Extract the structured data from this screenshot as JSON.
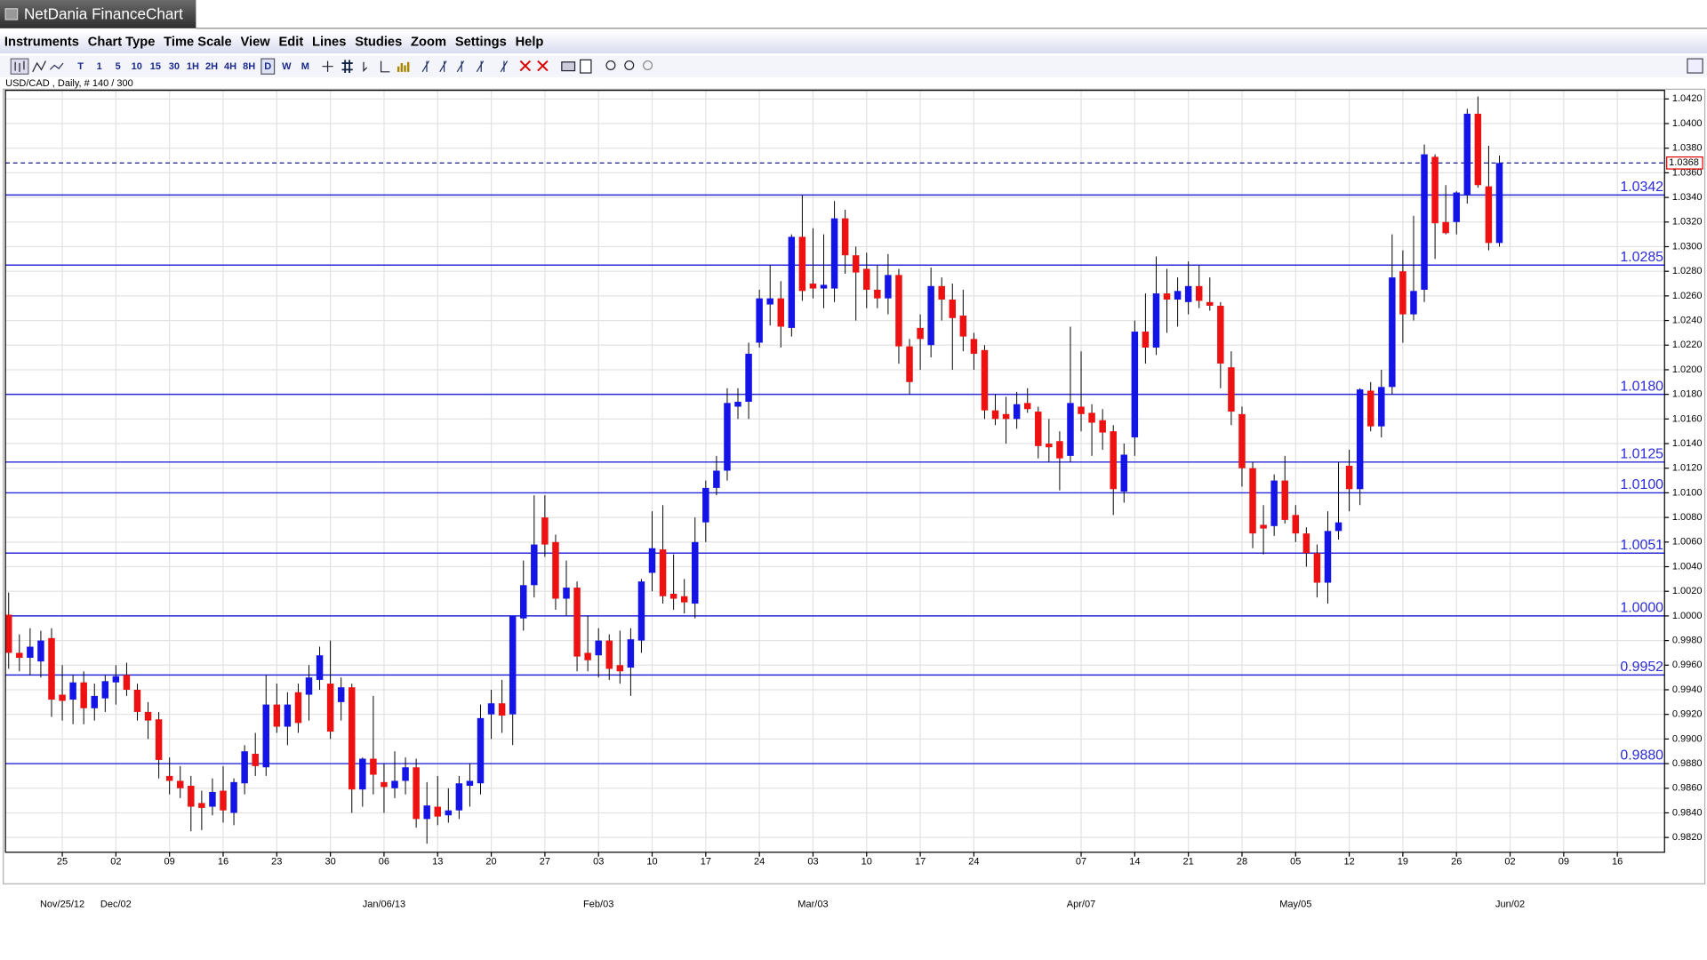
{
  "window": {
    "title": "NetDania FinanceChart"
  },
  "menu": [
    "Instruments",
    "Chart Type",
    "Time Scale",
    "View",
    "Edit",
    "Lines",
    "Studies",
    "Zoom",
    "Settings",
    "Help"
  ],
  "toolbar": {
    "time_buttons": [
      "T",
      "1",
      "5",
      "10",
      "15",
      "30",
      "1H",
      "2H",
      "4H",
      "8H",
      "D",
      "W",
      "M"
    ],
    "selected": "D"
  },
  "chart_data": {
    "type": "candlestick",
    "title": "USD/CAD , Daily, # 140 / 300",
    "up_color": "#1414e6",
    "down_color": "#ee1111",
    "level_color": "#2a2ad8",
    "grid": true,
    "xlim": [
      -0.3,
      154.4
    ],
    "ylim": [
      0.9808,
      1.0427
    ],
    "xticks": [
      {
        "value": 5,
        "label": "25"
      },
      {
        "value": 10,
        "label": "02"
      },
      {
        "value": 15,
        "label": "09"
      },
      {
        "value": 20,
        "label": "16"
      },
      {
        "value": 25,
        "label": "23"
      },
      {
        "value": 30,
        "label": "30"
      },
      {
        "value": 35,
        "label": "06"
      },
      {
        "value": 40,
        "label": "13"
      },
      {
        "value": 45,
        "label": "20"
      },
      {
        "value": 50,
        "label": "27"
      },
      {
        "value": 55,
        "label": "03"
      },
      {
        "value": 60,
        "label": "10"
      },
      {
        "value": 65,
        "label": "17"
      },
      {
        "value": 70,
        "label": "24"
      },
      {
        "value": 75,
        "label": "03"
      },
      {
        "value": 80,
        "label": "10"
      },
      {
        "value": 85,
        "label": "17"
      },
      {
        "value": 90,
        "label": "24"
      },
      {
        "value": 100,
        "label": "07"
      },
      {
        "value": 105,
        "label": "14"
      },
      {
        "value": 110,
        "label": "21"
      },
      {
        "value": 115,
        "label": "28"
      },
      {
        "value": 120,
        "label": "05"
      },
      {
        "value": 125,
        "label": "12"
      },
      {
        "value": 130,
        "label": "19"
      },
      {
        "value": 135,
        "label": "26"
      },
      {
        "value": 140,
        "label": "02"
      },
      {
        "value": 145,
        "label": "09"
      },
      {
        "value": 150,
        "label": "16"
      }
    ],
    "date_labels": [
      {
        "value": 5,
        "label": "Nov/25/12"
      },
      {
        "value": 10,
        "label": "Dec/02"
      },
      {
        "value": 35,
        "label": "Jan/06/13"
      },
      {
        "value": 55,
        "label": "Feb/03"
      },
      {
        "value": 75,
        "label": "Mar/03"
      },
      {
        "value": 100,
        "label": "Apr/07"
      },
      {
        "value": 120,
        "label": "May/05"
      },
      {
        "value": 140,
        "label": "Jun/02"
      }
    ],
    "yticks": [
      {
        "value": 0.982,
        "label": "0.9820"
      },
      {
        "value": 0.984,
        "label": "0.9840"
      },
      {
        "value": 0.986,
        "label": "0.9860"
      },
      {
        "value": 0.988,
        "label": "0.9880"
      },
      {
        "value": 0.99,
        "label": "0.9900"
      },
      {
        "value": 0.992,
        "label": "0.9920"
      },
      {
        "value": 0.994,
        "label": "0.9940"
      },
      {
        "value": 0.996,
        "label": "0.9960"
      },
      {
        "value": 0.998,
        "label": "0.9980"
      },
      {
        "value": 1.0,
        "label": "1.0000"
      },
      {
        "value": 1.002,
        "label": "1.0020"
      },
      {
        "value": 1.004,
        "label": "1.0040"
      },
      {
        "value": 1.006,
        "label": "1.0060"
      },
      {
        "value": 1.008,
        "label": "1.0080"
      },
      {
        "value": 1.01,
        "label": "1.0100"
      },
      {
        "value": 1.012,
        "label": "1.0120"
      },
      {
        "value": 1.014,
        "label": "1.0140"
      },
      {
        "value": 1.016,
        "label": "1.0160"
      },
      {
        "value": 1.018,
        "label": "1.0180"
      },
      {
        "value": 1.02,
        "label": "1.0200"
      },
      {
        "value": 1.022,
        "label": "1.0220"
      },
      {
        "value": 1.024,
        "label": "1.0240"
      },
      {
        "value": 1.026,
        "label": "1.0260"
      },
      {
        "value": 1.028,
        "label": "1.0280"
      },
      {
        "value": 1.03,
        "label": "1.0300"
      },
      {
        "value": 1.032,
        "label": "1.0320"
      },
      {
        "value": 1.034,
        "label": "1.0340"
      },
      {
        "value": 1.036,
        "label": "1.0360"
      },
      {
        "value": 1.038,
        "label": "1.0380"
      },
      {
        "value": 1.04,
        "label": "1.0400"
      },
      {
        "value": 1.042,
        "label": "1.0420"
      }
    ],
    "levels": [
      {
        "value": 1.0342,
        "label": "1.0342"
      },
      {
        "value": 1.0285,
        "label": "1.0285"
      },
      {
        "value": 1.018,
        "label": "1.0180"
      },
      {
        "value": 1.0125,
        "label": "1.0125"
      },
      {
        "value": 1.01,
        "label": "1.0100"
      },
      {
        "value": 1.0051,
        "label": "1.0051"
      },
      {
        "value": 1.0,
        "label": "1.0000"
      },
      {
        "value": 0.9952,
        "label": "0.9952"
      },
      {
        "value": 0.988,
        "label": "0.9880"
      }
    ],
    "last_price": {
      "value": 1.0368,
      "label": "1.0368"
    },
    "open": [
      1.0001,
      0.997,
      0.9966,
      0.9963,
      0.9982,
      0.9936,
      0.9932,
      0.9946,
      0.9925,
      0.9933,
      0.9946,
      0.9952,
      0.994,
      0.9922,
      0.9916,
      0.987,
      0.9866,
      0.9862,
      0.9848,
      0.9845,
      0.9858,
      0.984,
      0.9864,
      0.9888,
      0.9877,
      0.9928,
      0.991,
      0.9938,
      0.9936,
      0.9948,
      0.9945,
      0.993,
      0.9942,
      0.9859,
      0.9884,
      0.9865,
      0.986,
      0.9866,
      0.9877,
      0.9835,
      0.9845,
      0.9838,
      0.9842,
      0.9862,
      0.9864,
      0.992,
      0.9929,
      0.992,
      0.9998,
      1.0025,
      1.008,
      1.006,
      1.0014,
      1.0023,
      0.997,
      0.9968,
      0.998,
      0.996,
      0.9958,
      0.998,
      1.0035,
      1.0054,
      1.0018,
      1.0016,
      1.001,
      1.0076,
      1.0104,
      1.0118,
      1.017,
      1.0174,
      1.0222,
      1.0253,
      1.0258,
      1.0234,
      1.0308,
      1.027,
      1.0266,
      1.0266,
      1.0323,
      1.0293,
      1.0282,
      1.0265,
      1.0258,
      1.0277,
      1.0219,
      1.0234,
      1.022,
      1.0268,
      1.0257,
      1.0244,
      1.0225,
      1.0216,
      1.0167,
      1.0164,
      1.016,
      1.0173,
      1.0166,
      1.014,
      1.0142,
      1.013,
      1.017,
      1.0165,
      1.0159,
      1.015,
      1.0101,
      1.0145,
      1.0231,
      1.0218,
      1.0262,
      1.0257,
      1.0255,
      1.0268,
      1.0255,
      1.0252,
      1.0202,
      1.0164,
      1.012,
      1.0074,
      1.0073,
      1.011,
      1.0082,
      1.0067,
      1.0051,
      1.0027,
      1.0069,
      1.0122,
      1.0103,
      1.0183,
      1.0154,
      1.0186,
      1.028,
      1.0245,
      1.0265,
      1.0373,
      1.032,
      1.032,
      1.0342,
      1.0408,
      1.0349,
      1.0303
    ],
    "high": [
      1.0019,
      0.9985,
      0.999,
      0.9988,
      0.999,
      0.996,
      0.9952,
      0.9955,
      0.9945,
      0.9952,
      0.996,
      0.9962,
      0.9945,
      0.993,
      0.9922,
      0.9885,
      0.9878,
      0.987,
      0.9858,
      0.9868,
      0.9878,
      0.9868,
      0.9895,
      0.9905,
      0.9952,
      0.9945,
      0.9938,
      0.9945,
      0.996,
      0.9975,
      0.998,
      0.995,
      0.9945,
      0.9885,
      0.9935,
      0.988,
      0.989,
      0.9885,
      0.9884,
      0.9865,
      0.987,
      0.986,
      0.987,
      0.988,
      0.9928,
      0.994,
      0.9948,
      1.0,
      1.0045,
      1.0098,
      1.0098,
      1.0066,
      1.0045,
      1.0028,
      1.0,
      0.999,
      0.9985,
      0.9988,
      0.999,
      1.003,
      1.0085,
      1.009,
      1.005,
      1.003,
      1.008,
      1.011,
      1.013,
      1.0185,
      1.0185,
      1.0222,
      1.0265,
      1.0285,
      1.0272,
      1.031,
      1.0342,
      1.0315,
      1.031,
      1.0337,
      1.033,
      1.03,
      1.0295,
      1.0285,
      1.0294,
      1.0282,
      1.0225,
      1.0245,
      1.0283,
      1.0275,
      1.027,
      1.0265,
      1.023,
      1.022,
      1.018,
      1.0178,
      1.0182,
      1.0185,
      1.017,
      1.016,
      1.015,
      1.0235,
      1.0215,
      1.0172,
      1.0168,
      1.0155,
      1.014,
      1.024,
      1.0262,
      1.0292,
      1.0282,
      1.0275,
      1.0288,
      1.0285,
      1.0275,
      1.0255,
      1.0215,
      1.017,
      1.0125,
      1.009,
      1.0115,
      1.013,
      1.009,
      1.0072,
      1.0058,
      1.0085,
      1.0125,
      1.0135,
      1.0185,
      1.019,
      1.02,
      1.031,
      1.0297,
      1.0325,
      1.0383,
      1.0375,
      1.035,
      1.0345,
      1.0412,
      1.0422,
      1.0382,
      1.0374
    ],
    "low": [
      0.9957,
      0.9955,
      0.9952,
      0.995,
      0.9918,
      0.9915,
      0.9912,
      0.9912,
      0.9915,
      0.9922,
      0.9928,
      0.9935,
      0.9915,
      0.99,
      0.9868,
      0.9855,
      0.9852,
      0.9825,
      0.9826,
      0.9838,
      0.9832,
      0.983,
      0.9855,
      0.987,
      0.987,
      0.9905,
      0.9895,
      0.9905,
      0.9915,
      0.994,
      0.99,
      0.9915,
      0.984,
      0.9845,
      0.9855,
      0.984,
      0.9852,
      0.9855,
      0.9828,
      0.9815,
      0.983,
      0.9832,
      0.9835,
      0.9845,
      0.9855,
      0.99,
      0.9905,
      0.9895,
      0.9988,
      1.0015,
      1.0048,
      1.0005,
      1.0,
      0.9955,
      0.9955,
      0.995,
      0.9948,
      0.9945,
      0.9935,
      0.997,
      1.002,
      1.001,
      1.0005,
      1.0002,
      0.9998,
      1.006,
      1.0098,
      1.011,
      1.016,
      1.016,
      1.0218,
      1.0236,
      1.0218,
      1.0227,
      1.0256,
      1.0258,
      1.025,
      1.0255,
      1.0278,
      1.024,
      1.025,
      1.025,
      1.0245,
      1.0205,
      1.018,
      1.02,
      1.021,
      1.024,
      1.02,
      1.0215,
      1.02,
      1.016,
      1.0155,
      1.014,
      1.0152,
      1.0165,
      1.0128,
      1.0125,
      1.0102,
      1.0125,
      1.015,
      1.013,
      1.0135,
      1.0082,
      1.0092,
      1.013,
      1.0205,
      1.0212,
      1.023,
      1.0235,
      1.0245,
      1.025,
      1.0248,
      1.0185,
      1.0155,
      1.0105,
      1.0055,
      1.005,
      1.0065,
      1.0075,
      1.006,
      1.004,
      1.0015,
      1.001,
      1.0062,
      1.0085,
      1.009,
      1.015,
      1.0145,
      1.018,
      1.0222,
      1.024,
      1.0255,
      1.029,
      1.031,
      1.031,
      1.0335,
      1.0348,
      1.0297,
      1.03
    ],
    "close": [
      0.997,
      0.9966,
      0.9975,
      0.998,
      0.9932,
      0.9931,
      0.9946,
      0.9925,
      0.9935,
      0.9947,
      0.9951,
      0.994,
      0.9922,
      0.9915,
      0.9883,
      0.9866,
      0.986,
      0.9845,
      0.9844,
      0.9857,
      0.9842,
      0.9865,
      0.989,
      0.9878,
      0.9928,
      0.991,
      0.9928,
      0.9913,
      0.995,
      0.9968,
      0.9906,
      0.9942,
      0.9859,
      0.9884,
      0.9871,
      0.9861,
      0.9866,
      0.9877,
      0.9835,
      0.9846,
      0.9837,
      0.9842,
      0.9864,
      0.9866,
      0.9917,
      0.9929,
      0.9919,
      1.0,
      1.0025,
      1.0058,
      1.0058,
      1.0014,
      1.0023,
      0.9967,
      0.9964,
      0.998,
      0.9957,
      0.9955,
      0.9981,
      1.0028,
      1.0055,
      1.0016,
      1.0014,
      1.0011,
      1.006,
      1.0104,
      1.0118,
      1.0173,
      1.0174,
      1.0213,
      1.0258,
      1.0258,
      1.0235,
      1.0308,
      1.0264,
      1.0266,
      1.0269,
      1.0323,
      1.0293,
      1.0279,
      1.0265,
      1.0258,
      1.0277,
      1.0219,
      1.019,
      1.0225,
      1.0268,
      1.0257,
      1.0242,
      1.0227,
      1.0213,
      1.0167,
      1.016,
      1.016,
      1.0172,
      1.0168,
      1.0138,
      1.0137,
      1.0128,
      1.0173,
      1.0164,
      1.0157,
      1.0149,
      1.0103,
      1.0131,
      1.0231,
      1.0218,
      1.0262,
      1.0257,
      1.0264,
      1.0268,
      1.0256,
      1.0252,
      1.0205,
      1.0166,
      1.012,
      1.0067,
      1.0071,
      1.011,
      1.0078,
      1.0067,
      1.0051,
      1.0027,
      1.0069,
      1.0076,
      1.0103,
      1.0184,
      1.0154,
      1.0186,
      1.0275,
      1.0245,
      1.0264,
      1.0375,
      1.0319,
      1.0311,
      1.0344,
      1.0408,
      1.035,
      1.0303,
      1.0368
    ]
  }
}
